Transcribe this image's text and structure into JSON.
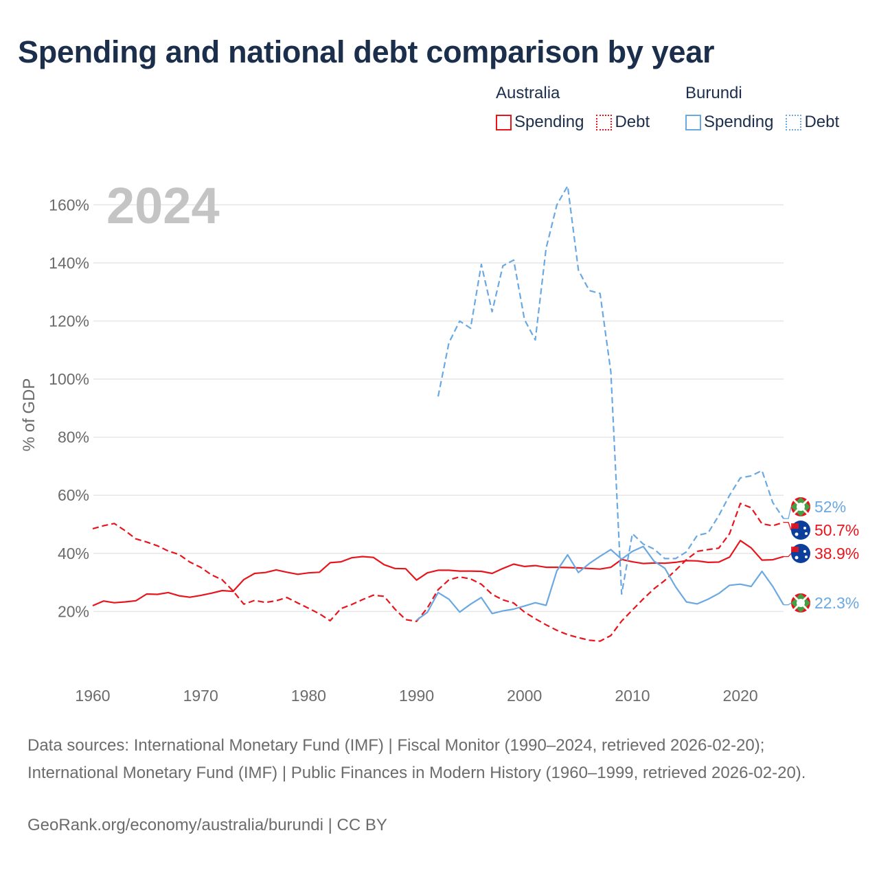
{
  "title": "Spending and national debt comparison by year",
  "legend": {
    "groups": [
      {
        "name": "Australia",
        "spending_label": "Spending",
        "debt_label": "Debt",
        "color": "#e8141c"
      },
      {
        "name": "Burundi",
        "spending_label": "Spending",
        "debt_label": "Debt",
        "color": "#6aa8e2"
      }
    ]
  },
  "footer": {
    "source": "Data sources: International Monetary Fund (IMF) | Fiscal Monitor (1990–2024, retrieved 2026-02-20); International Monetary Fund (IMF) | Public Finances in Modern History (1960–1999, retrieved 2026-02-20).",
    "credit": "GeoRank.org/economy/australia/burundi | CC BY"
  },
  "chart_data": {
    "type": "line",
    "watermark_year": "2024",
    "ylabel": "% of GDP",
    "xlabel": "",
    "xlim": [
      1960,
      2024
    ],
    "ylim": [
      0,
      170
    ],
    "x_ticks": [
      1960,
      1970,
      1980,
      1990,
      2000,
      2010,
      2020
    ],
    "x_tick_labels": [
      "1960",
      "1970",
      "1980",
      "1990",
      "2000",
      "2010",
      "2020"
    ],
    "y_ticks": [
      20,
      40,
      60,
      80,
      100,
      120,
      140,
      160
    ],
    "y_tick_labels": [
      "20%",
      "40%",
      "60%",
      "80%",
      "100%",
      "120%",
      "140%",
      "160%"
    ],
    "grid": true,
    "series": [
      {
        "name": "Australia Spending",
        "country": "Australia",
        "metric": "Spending",
        "color": "#e8141c",
        "style": "solid",
        "start_year": 1960,
        "end_label": "38.9%",
        "end_flag": "australia-flag",
        "values": [
          22.0,
          23.6,
          23.0,
          23.3,
          23.7,
          26.0,
          25.9,
          26.5,
          25.4,
          24.9,
          25.5,
          26.3,
          27.2,
          26.9,
          31.0,
          33.1,
          33.4,
          34.3,
          33.5,
          32.8,
          33.3,
          33.5,
          36.8,
          37.1,
          38.5,
          38.9,
          38.6,
          36.1,
          34.8,
          34.7,
          30.8,
          33.3,
          34.2,
          34.2,
          33.9,
          33.9,
          33.8,
          33.1,
          34.8,
          36.3,
          35.5,
          35.8,
          35.2,
          35.2,
          35.1,
          35.0,
          34.8,
          34.6,
          35.2,
          37.9,
          37.1,
          36.5,
          36.7,
          36.6,
          36.9,
          37.5,
          37.4,
          36.9,
          37.0,
          38.7,
          44.4,
          41.9,
          37.7,
          37.8,
          38.9
        ]
      },
      {
        "name": "Australia Debt",
        "country": "Australia",
        "metric": "Debt",
        "color": "#e8141c",
        "style": "dashed",
        "start_year": 1960,
        "end_label": "50.7%",
        "end_flag": "australia-flag",
        "values": [
          48.5,
          49.5,
          50.3,
          47.8,
          45.0,
          43.9,
          42.6,
          40.8,
          39.6,
          37.0,
          35.2,
          32.6,
          30.9,
          27.1,
          22.5,
          23.8,
          23.1,
          23.7,
          24.8,
          22.9,
          21.1,
          19.2,
          16.8,
          21.0,
          22.4,
          24.1,
          25.6,
          25.2,
          20.8,
          17.2,
          16.6,
          21.2,
          27.5,
          30.9,
          31.9,
          31.2,
          29.4,
          25.9,
          24.0,
          22.9,
          19.8,
          17.5,
          15.4,
          13.5,
          12.0,
          11.0,
          10.1,
          9.8,
          11.7,
          16.7,
          20.5,
          24.3,
          27.8,
          30.7,
          34.2,
          37.8,
          40.7,
          41.3,
          41.8,
          46.8,
          57.2,
          55.7,
          50.2,
          49.5,
          50.7
        ]
      },
      {
        "name": "Burundi Spending",
        "country": "Burundi",
        "metric": "Spending",
        "color": "#6aa8e2",
        "style": "solid",
        "start_year": 1990,
        "end_label": "22.3%",
        "end_flag": "burundi-flag",
        "values": [
          17.0,
          19.7,
          26.5,
          24.2,
          19.8,
          22.5,
          24.8,
          19.3,
          20.2,
          20.8,
          21.9,
          23.0,
          22.1,
          34.0,
          39.5,
          33.4,
          36.5,
          39.0,
          41.3,
          38.0,
          40.7,
          42.4,
          37.3,
          34.9,
          28.5,
          23.3,
          22.6,
          24.2,
          26.2,
          29.0,
          29.4,
          28.6,
          33.8,
          28.6,
          22.3
        ]
      },
      {
        "name": "Burundi Debt",
        "country": "Burundi",
        "metric": "Debt",
        "color": "#6aa8e2",
        "style": "dashed",
        "start_year": 1992,
        "end_label": "52%",
        "end_flag": "burundi-flag",
        "values": [
          94.0,
          112.5,
          120.0,
          117.5,
          139.5,
          123.2,
          139.0,
          141.0,
          120.5,
          113.5,
          145.0,
          160.0,
          166.5,
          137.5,
          130.5,
          129.5,
          102.5,
          26.0,
          46.8,
          43.2,
          41.5,
          38.2,
          38.2,
          40.5,
          46.2,
          47.0,
          53.0,
          60.0,
          66.0,
          66.7,
          68.5,
          57.5,
          52.0
        ]
      }
    ]
  }
}
